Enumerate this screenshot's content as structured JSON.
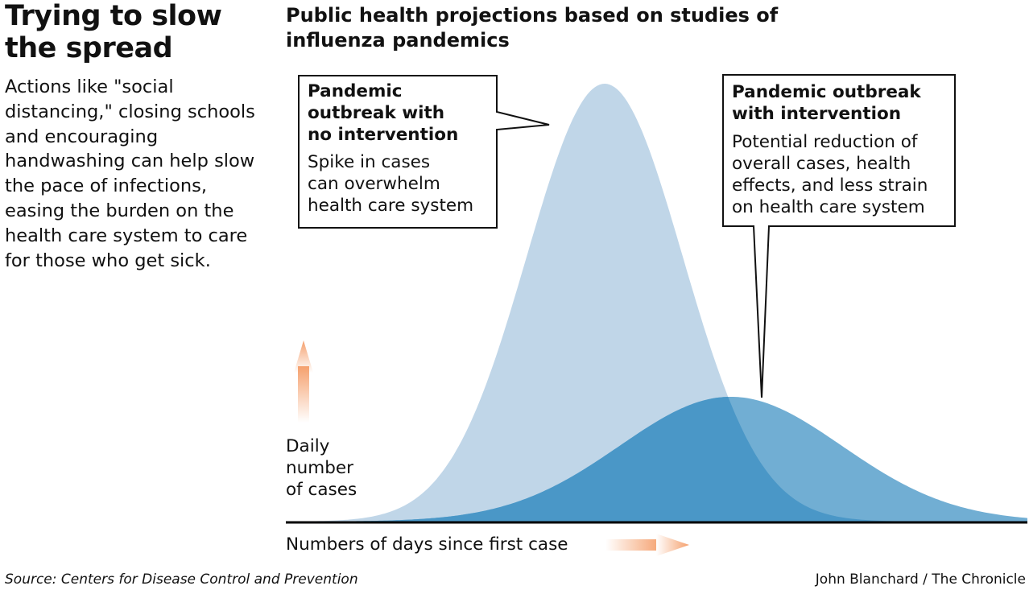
{
  "headline": "Trying to slow the spread",
  "intro": "Actions like \"social distancing,\" closing schools and encouraging handwashing can help slow the pace of infections, easing the burden on the health care system to care for those who get sick.",
  "chart_data": {
    "type": "area",
    "title": "Public health projections based on studies of influenza pandemics",
    "ylabel": [
      "Daily",
      "number",
      "of cases"
    ],
    "xlabel": "Numbers of days since first case",
    "x_ticks": "none",
    "y_ticks": "none",
    "series": [
      {
        "callout_title": [
          "Pandemic",
          "outbreak with",
          "no intervention"
        ],
        "callout_body": [
          "Spike in cases",
          "can overwhelm",
          "health care system"
        ],
        "color": "#c0d6e8",
        "shape": "gaussian",
        "peak_x": 0.43,
        "peak_y": 1.0,
        "spread": 0.105
      },
      {
        "callout_title": [
          "Pandemic outbreak",
          "with intervention"
        ],
        "callout_body": [
          "Potential reduction of",
          "overall cases, health",
          "effects, and less strain",
          "on health care system"
        ],
        "color": "#71aed3",
        "shape": "gaussian",
        "peak_x": 0.6,
        "peak_y": 0.285,
        "spread": 0.15
      }
    ],
    "overlap_color": "#4a97c7",
    "arrow_color": "#f5a06d",
    "grid": false,
    "legend": "callouts"
  },
  "footer": {
    "source": "Source: Centers for Disease Control and Prevention",
    "credit": "John Blanchard / The Chronicle"
  }
}
